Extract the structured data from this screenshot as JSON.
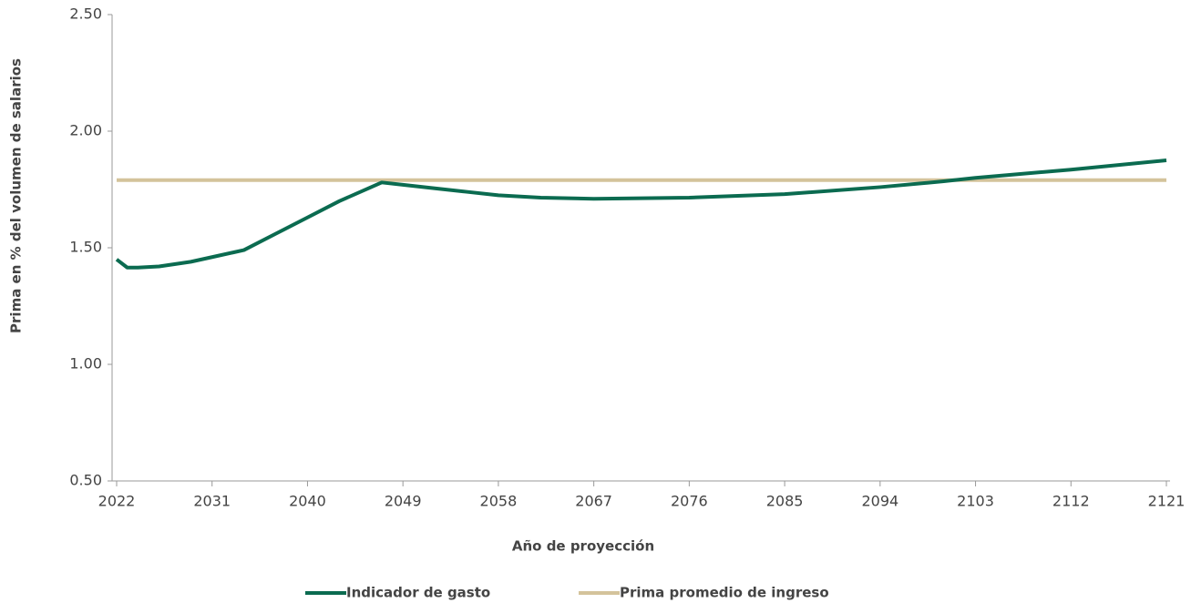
{
  "chart_data": {
    "type": "line",
    "x_label": "Año de proyección",
    "y_label": "Prima en % del volumen de salarios",
    "xlim": [
      2022,
      2121
    ],
    "xticks": [
      2022,
      2031,
      2040,
      2049,
      2058,
      2067,
      2076,
      2085,
      2094,
      2103,
      2112,
      2121
    ],
    "ylim": [
      0.5,
      2.5
    ],
    "yticks": [
      {
        "value": 0.5,
        "label": "0.50"
      },
      {
        "value": 1.0,
        "label": "1.00"
      },
      {
        "value": 1.5,
        "label": "1.50"
      },
      {
        "value": 2.0,
        "label": "2.00"
      },
      {
        "value": 2.5,
        "label": "2.50"
      }
    ],
    "grid": false,
    "legend": "bottom",
    "series": [
      {
        "name": "Indicador de gasto",
        "color": "#0b6b50",
        "x": [
          2022,
          2023,
          2024,
          2026,
          2029,
          2031,
          2033,
          2034,
          2037,
          2040,
          2043,
          2046,
          2047,
          2049,
          2052,
          2055,
          2058,
          2062,
          2067,
          2076,
          2085,
          2094,
          2100,
          2103,
          2112,
          2121
        ],
        "values": [
          1.45,
          1.415,
          1.415,
          1.42,
          1.44,
          1.46,
          1.48,
          1.49,
          1.56,
          1.63,
          1.7,
          1.76,
          1.78,
          1.77,
          1.755,
          1.74,
          1.725,
          1.715,
          1.71,
          1.715,
          1.73,
          1.76,
          1.785,
          1.8,
          1.835,
          1.875
        ]
      },
      {
        "name": "Prima promedio de ingreso",
        "color": "#d4c39b",
        "x": [
          2022,
          2121
        ],
        "values": [
          1.79,
          1.79
        ]
      }
    ]
  }
}
